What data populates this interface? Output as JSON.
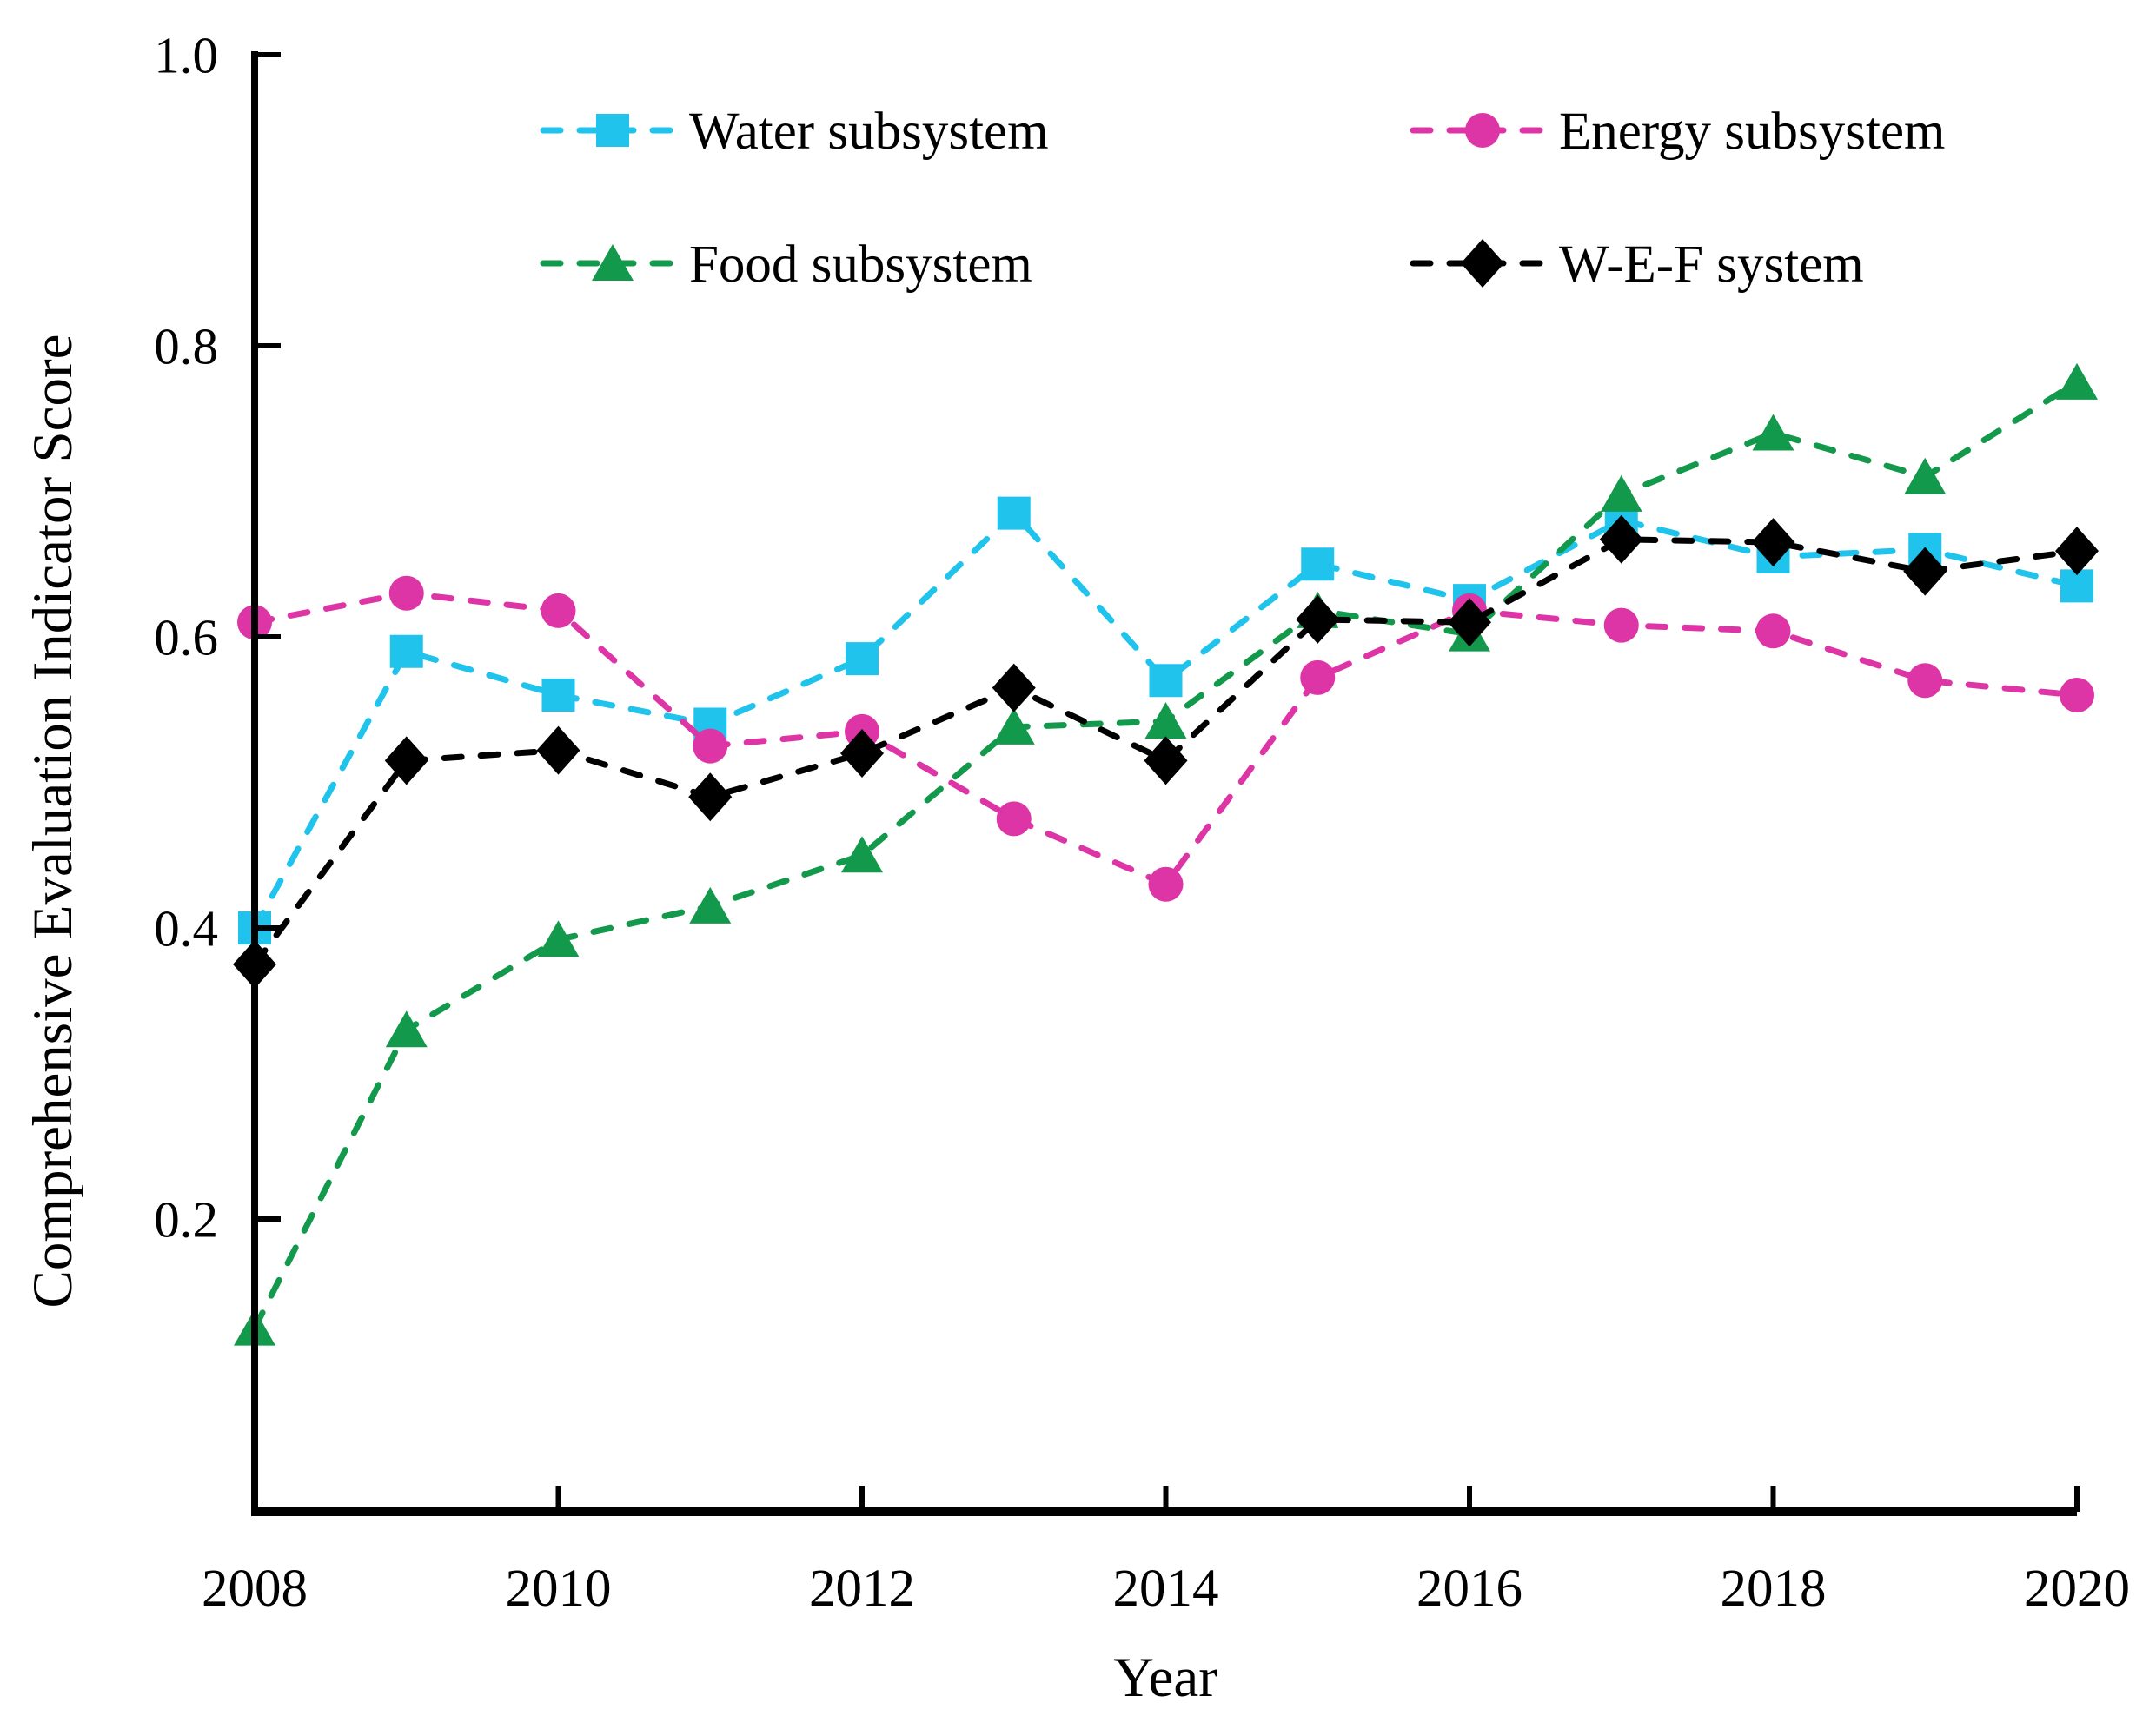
{
  "chart_data": {
    "type": "line",
    "title": "",
    "xlabel": "Year",
    "ylabel": "Comprehensive Evaluation Indicator Score",
    "line_style": "dashed",
    "grid": false,
    "legend_position": "inside-top, two columns, two rows",
    "xlim": [
      2008,
      2020
    ],
    "ylim": [
      0,
      1.0
    ],
    "x": [
      2008,
      2009,
      2010,
      2011,
      2012,
      2013,
      2014,
      2015,
      2016,
      2017,
      2018,
      2019,
      2020
    ],
    "x_ticks": [
      2008,
      2010,
      2012,
      2014,
      2016,
      2018,
      2020
    ],
    "x_tick_labels": [
      "2008",
      "2010",
      "2012",
      "2014",
      "2016",
      "2018",
      "2020"
    ],
    "y_ticks": [
      0.2,
      0.4,
      0.6,
      0.8,
      1.0
    ],
    "y_tick_labels": [
      "0.2",
      "0.4",
      "0.6",
      "0.8",
      "1.0"
    ],
    "series": [
      {
        "name": "Water subsystem",
        "marker": "square",
        "color": "#1FC3EB",
        "values": [
          0.4,
          0.59,
          0.56,
          0.54,
          0.585,
          0.685,
          0.57,
          0.65,
          0.625,
          0.68,
          0.655,
          0.66,
          0.635
        ]
      },
      {
        "name": "Energy subsystem",
        "marker": "circle",
        "color": "#DE35A6",
        "values": [
          0.61,
          0.63,
          0.618,
          0.525,
          0.535,
          0.475,
          0.43,
          0.572,
          0.618,
          0.608,
          0.604,
          0.57,
          0.56
        ]
      },
      {
        "name": "Food subsystem",
        "marker": "triangle",
        "color": "#12994B",
        "values": [
          0.125,
          0.33,
          0.392,
          0.415,
          0.45,
          0.538,
          0.542,
          0.618,
          0.602,
          0.698,
          0.74,
          0.71,
          0.775
        ]
      },
      {
        "name": "W-E-F system",
        "marker": "diamond",
        "color": "#000000",
        "values": [
          0.375,
          0.515,
          0.522,
          0.49,
          0.52,
          0.565,
          0.515,
          0.612,
          0.61,
          0.667,
          0.665,
          0.645,
          0.659
        ]
      }
    ]
  }
}
